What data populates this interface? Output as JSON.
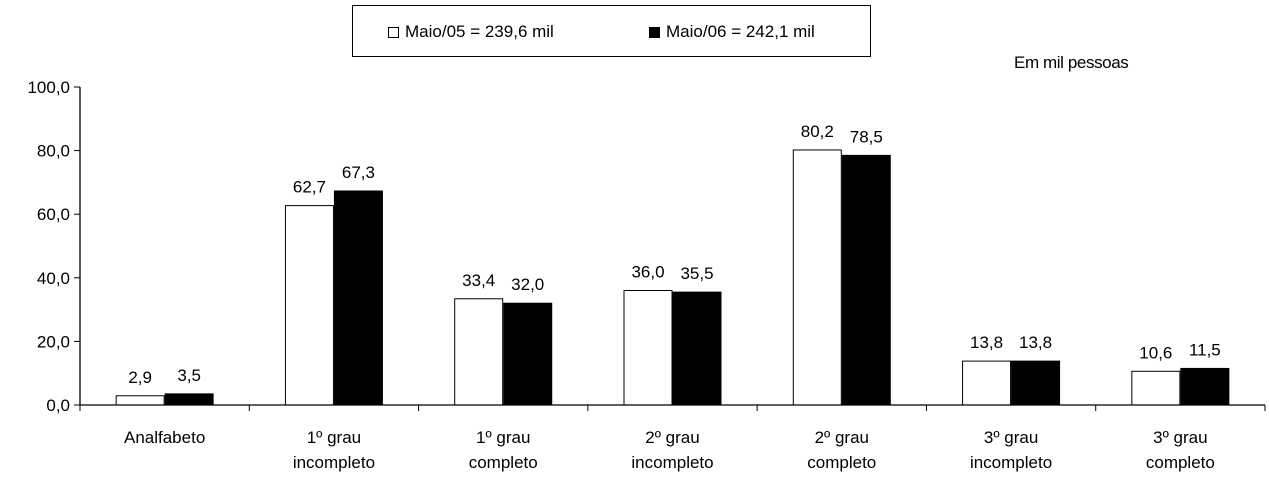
{
  "chart_data": {
    "type": "bar",
    "unit_label": "Em mil pessoas",
    "categories": [
      [
        "Analfabeto"
      ],
      [
        "1º grau",
        "incompleto"
      ],
      [
        "1º grau",
        "completo"
      ],
      [
        "2º grau",
        "incompleto"
      ],
      [
        "2º grau",
        "completo"
      ],
      [
        "3º grau",
        "incompleto"
      ],
      [
        "3º grau",
        "completo"
      ]
    ],
    "series": [
      {
        "name": "Maio/05 = 239,6 mil",
        "color": "#ffffff",
        "values": [
          2.9,
          62.7,
          33.4,
          36.0,
          80.2,
          13.8,
          10.6
        ],
        "labels": [
          "2,9",
          "62,7",
          "33,4",
          "36,0",
          "80,2",
          "13,8",
          "10,6"
        ]
      },
      {
        "name": "Maio/06 = 242,1 mil",
        "color": "#000000",
        "values": [
          3.5,
          67.3,
          32.0,
          35.5,
          78.5,
          13.8,
          11.5
        ],
        "labels": [
          "3,5",
          "67,3",
          "32,0",
          "35,5",
          "78,5",
          "13,8",
          "11,5"
        ]
      }
    ],
    "ylim": [
      0,
      100
    ],
    "yticks": [
      0,
      20,
      40,
      60,
      80,
      100
    ],
    "ytick_labels": [
      "0,0",
      "20,0",
      "40,0",
      "60,0",
      "80,0",
      "100,0"
    ],
    "grid": false,
    "legend_position": "top-center"
  }
}
